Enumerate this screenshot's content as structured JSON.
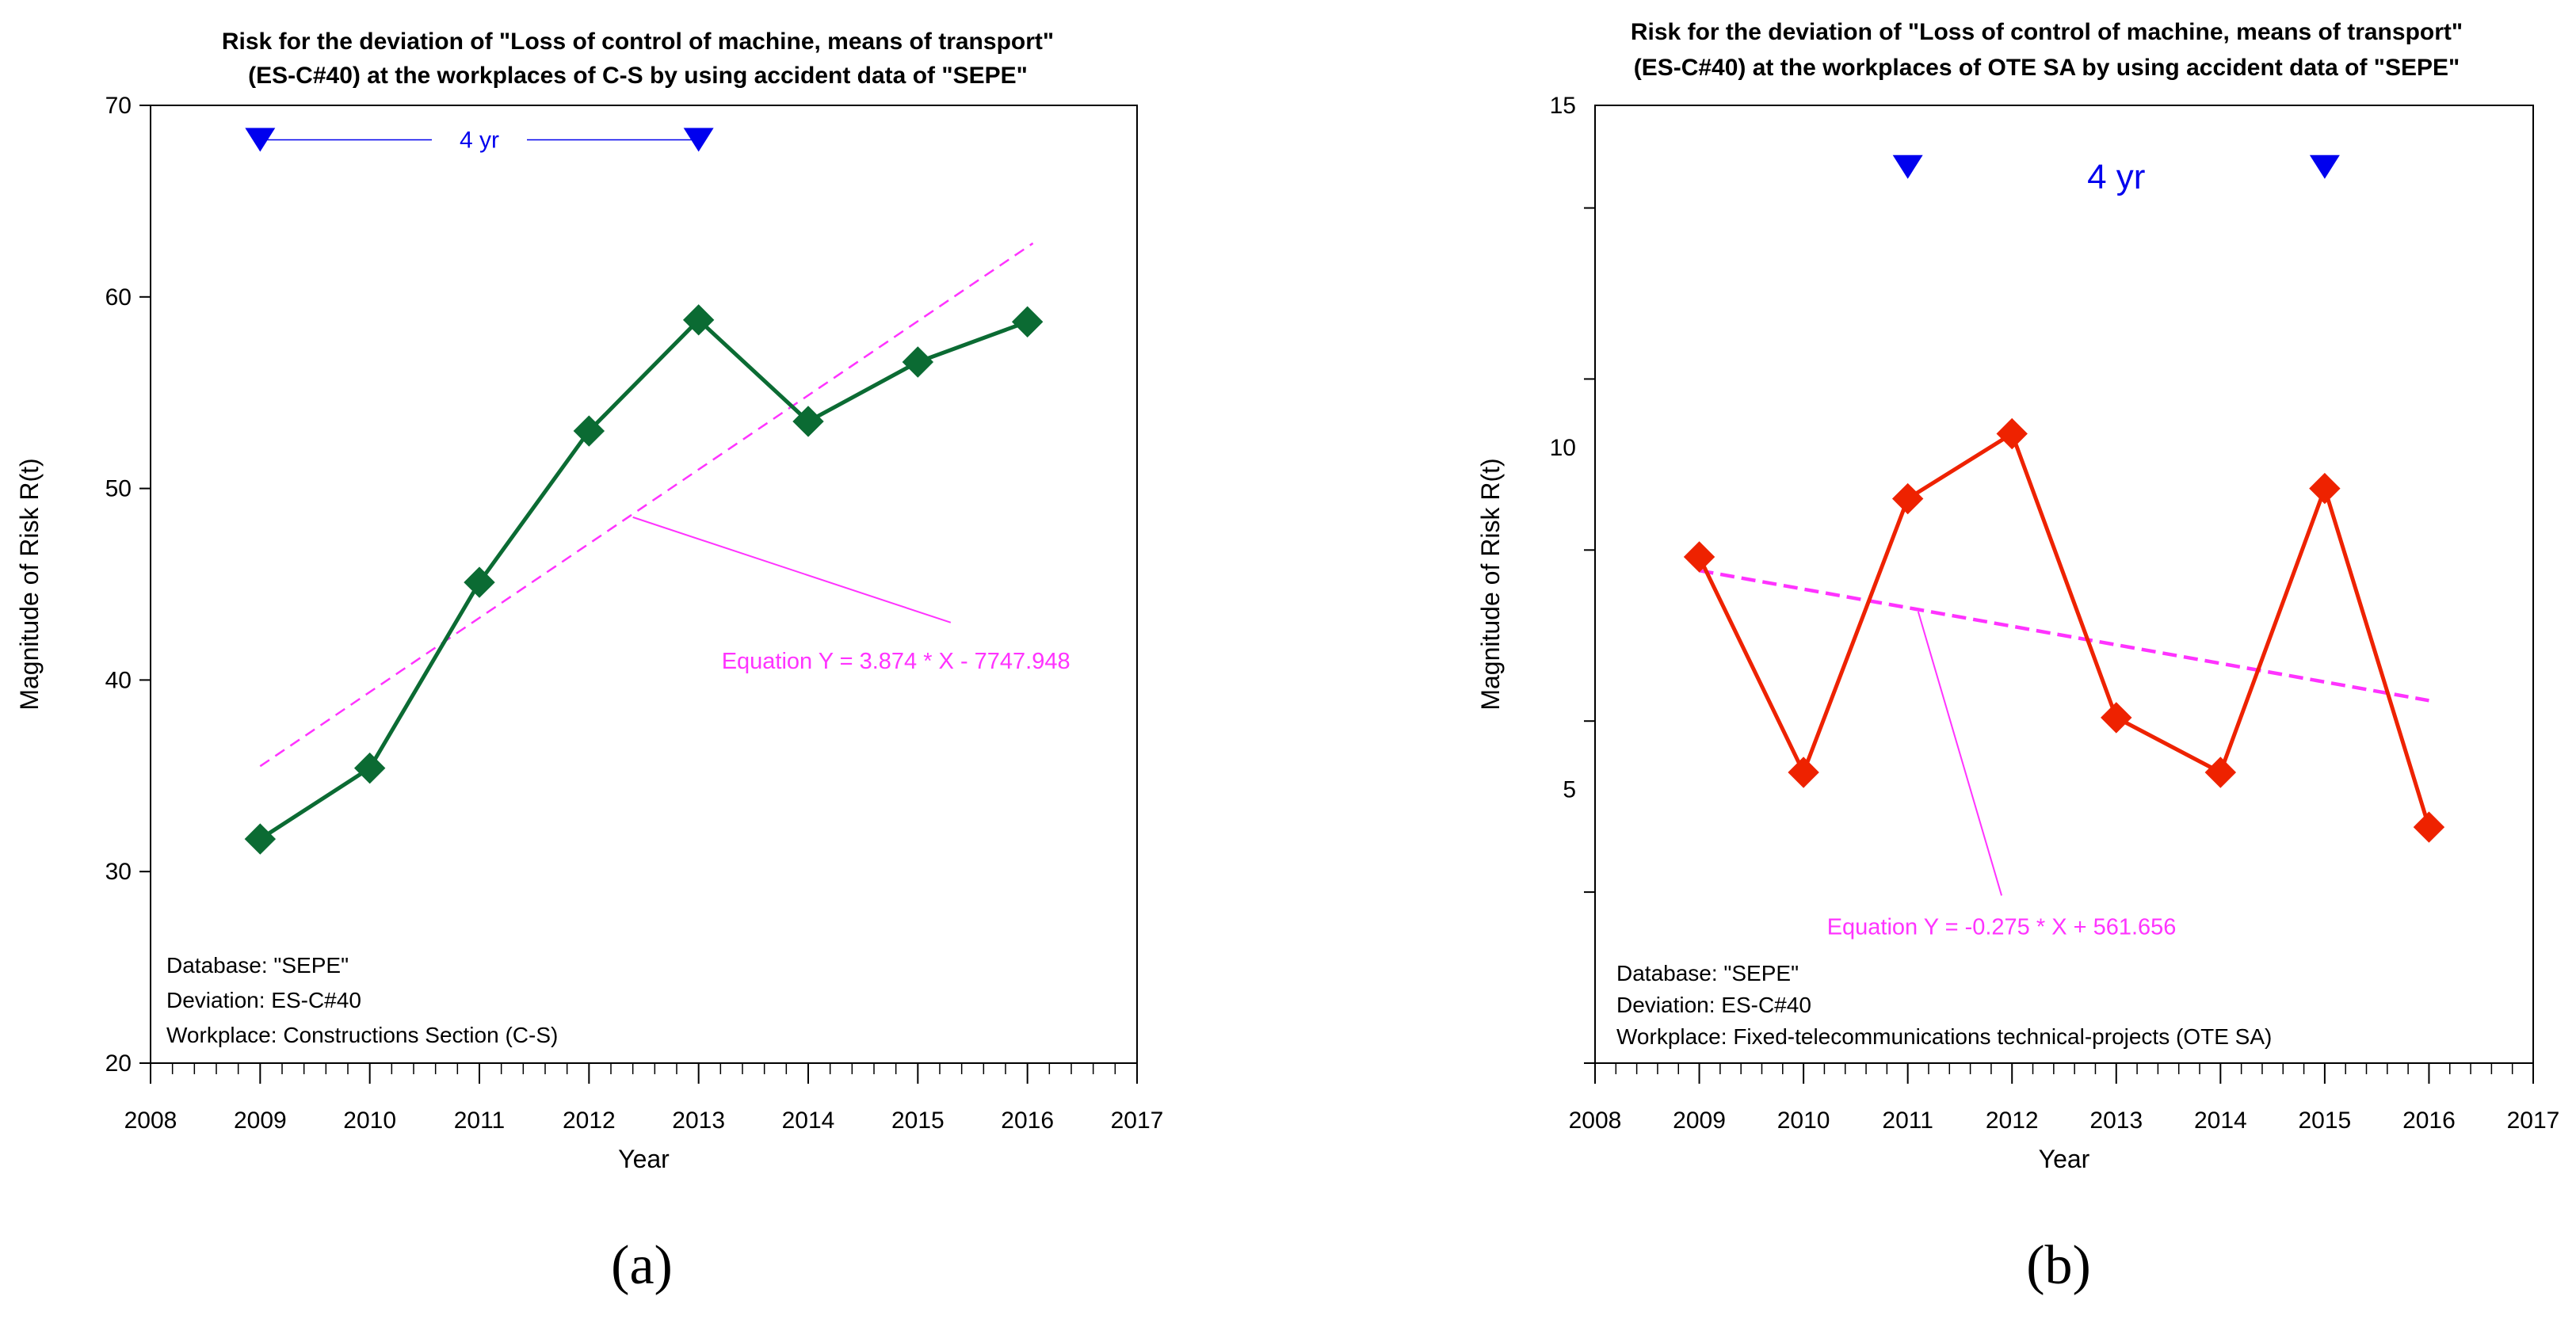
{
  "chart_data": [
    {
      "type": "line",
      "caption": "(a)",
      "title": [
        "Risk for the deviation of \"Loss of control of machine, means of transport\"",
        "(ES-C#40) at the workplaces of C-S by using accident data of \"SEPE\""
      ],
      "xlabel": "Year",
      "ylabel": "Magnitude of Risk R(t)",
      "xlim": [
        2008,
        2017
      ],
      "ylim": [
        20,
        70
      ],
      "xticks": [
        2008,
        2009,
        2010,
        2011,
        2012,
        2013,
        2014,
        2015,
        2016,
        2017
      ],
      "yticks": [
        20,
        30,
        40,
        50,
        60,
        70
      ],
      "series": [
        {
          "name": "R(t)",
          "color": "#0b6b33",
          "x": [
            2009,
            2010,
            2011,
            2012,
            2013,
            2014,
            2015,
            2016
          ],
          "values": [
            31.7,
            35.4,
            45.1,
            53.0,
            58.8,
            53.5,
            56.6,
            58.7
          ]
        }
      ],
      "trend": {
        "color": "#ff33ff",
        "x": [
          2009,
          2016.05
        ],
        "values": [
          35.5,
          62.8
        ],
        "label": "Equation Y = 3.874 * X - 7747.948",
        "pointer_from": [
          2012.4,
          48.5
        ],
        "pointer_to": [
          2015.3,
          43.0
        ],
        "label_pos": [
          2014.8,
          41.0
        ]
      },
      "period": {
        "label": "4 yr",
        "color": "#0000ee",
        "x": [
          2009,
          2013
        ],
        "y": 68.2
      },
      "info": [
        "Database: \"SEPE\"",
        "Deviation: ES-C#40",
        "Workplace: Constructions Section (C-S)"
      ]
    },
    {
      "type": "line",
      "caption": "(b)",
      "title": [
        "Risk for the deviation of \"Loss of control of machine, means of transport\"",
        "(ES-C#40) at the workplaces of OTE SA by using accident data of \"SEPE\""
      ],
      "xlabel": "Year",
      "ylabel": "Magnitude of Risk R(t)",
      "xlim": [
        2008,
        2017
      ],
      "ylim": [
        1,
        15
      ],
      "xticks": [
        2008,
        2009,
        2010,
        2011,
        2012,
        2013,
        2014,
        2015,
        2016,
        2017
      ],
      "yticks": [
        5,
        10,
        15
      ],
      "series": [
        {
          "name": "R(t)",
          "color": "#ee2200",
          "x": [
            2009,
            2010,
            2011,
            2012,
            2013,
            2014,
            2015,
            2016
          ],
          "values": [
            8.4,
            5.25,
            9.25,
            10.2,
            6.05,
            5.25,
            9.4,
            4.45
          ]
        }
      ],
      "trend": {
        "color": "#ff33ff",
        "x": [
          2009,
          2016
        ],
        "values": [
          8.2,
          6.3
        ],
        "label": "Equation Y = -0.275 * X + 561.656",
        "pointer_from": [
          2011.1,
          7.6
        ],
        "pointer_to": [
          2011.9,
          3.45
        ],
        "label_pos": [
          2011.9,
          3.0
        ]
      },
      "period": {
        "label": "4 yr",
        "color": "#0000ee",
        "x": [
          2011,
          2015
        ],
        "y": 14.1
      },
      "info": [
        "Database: \"SEPE\"",
        "Deviation: ES-C#40",
        "Workplace: Fixed-telecommunications technical-projects (OTE SA)"
      ]
    }
  ]
}
